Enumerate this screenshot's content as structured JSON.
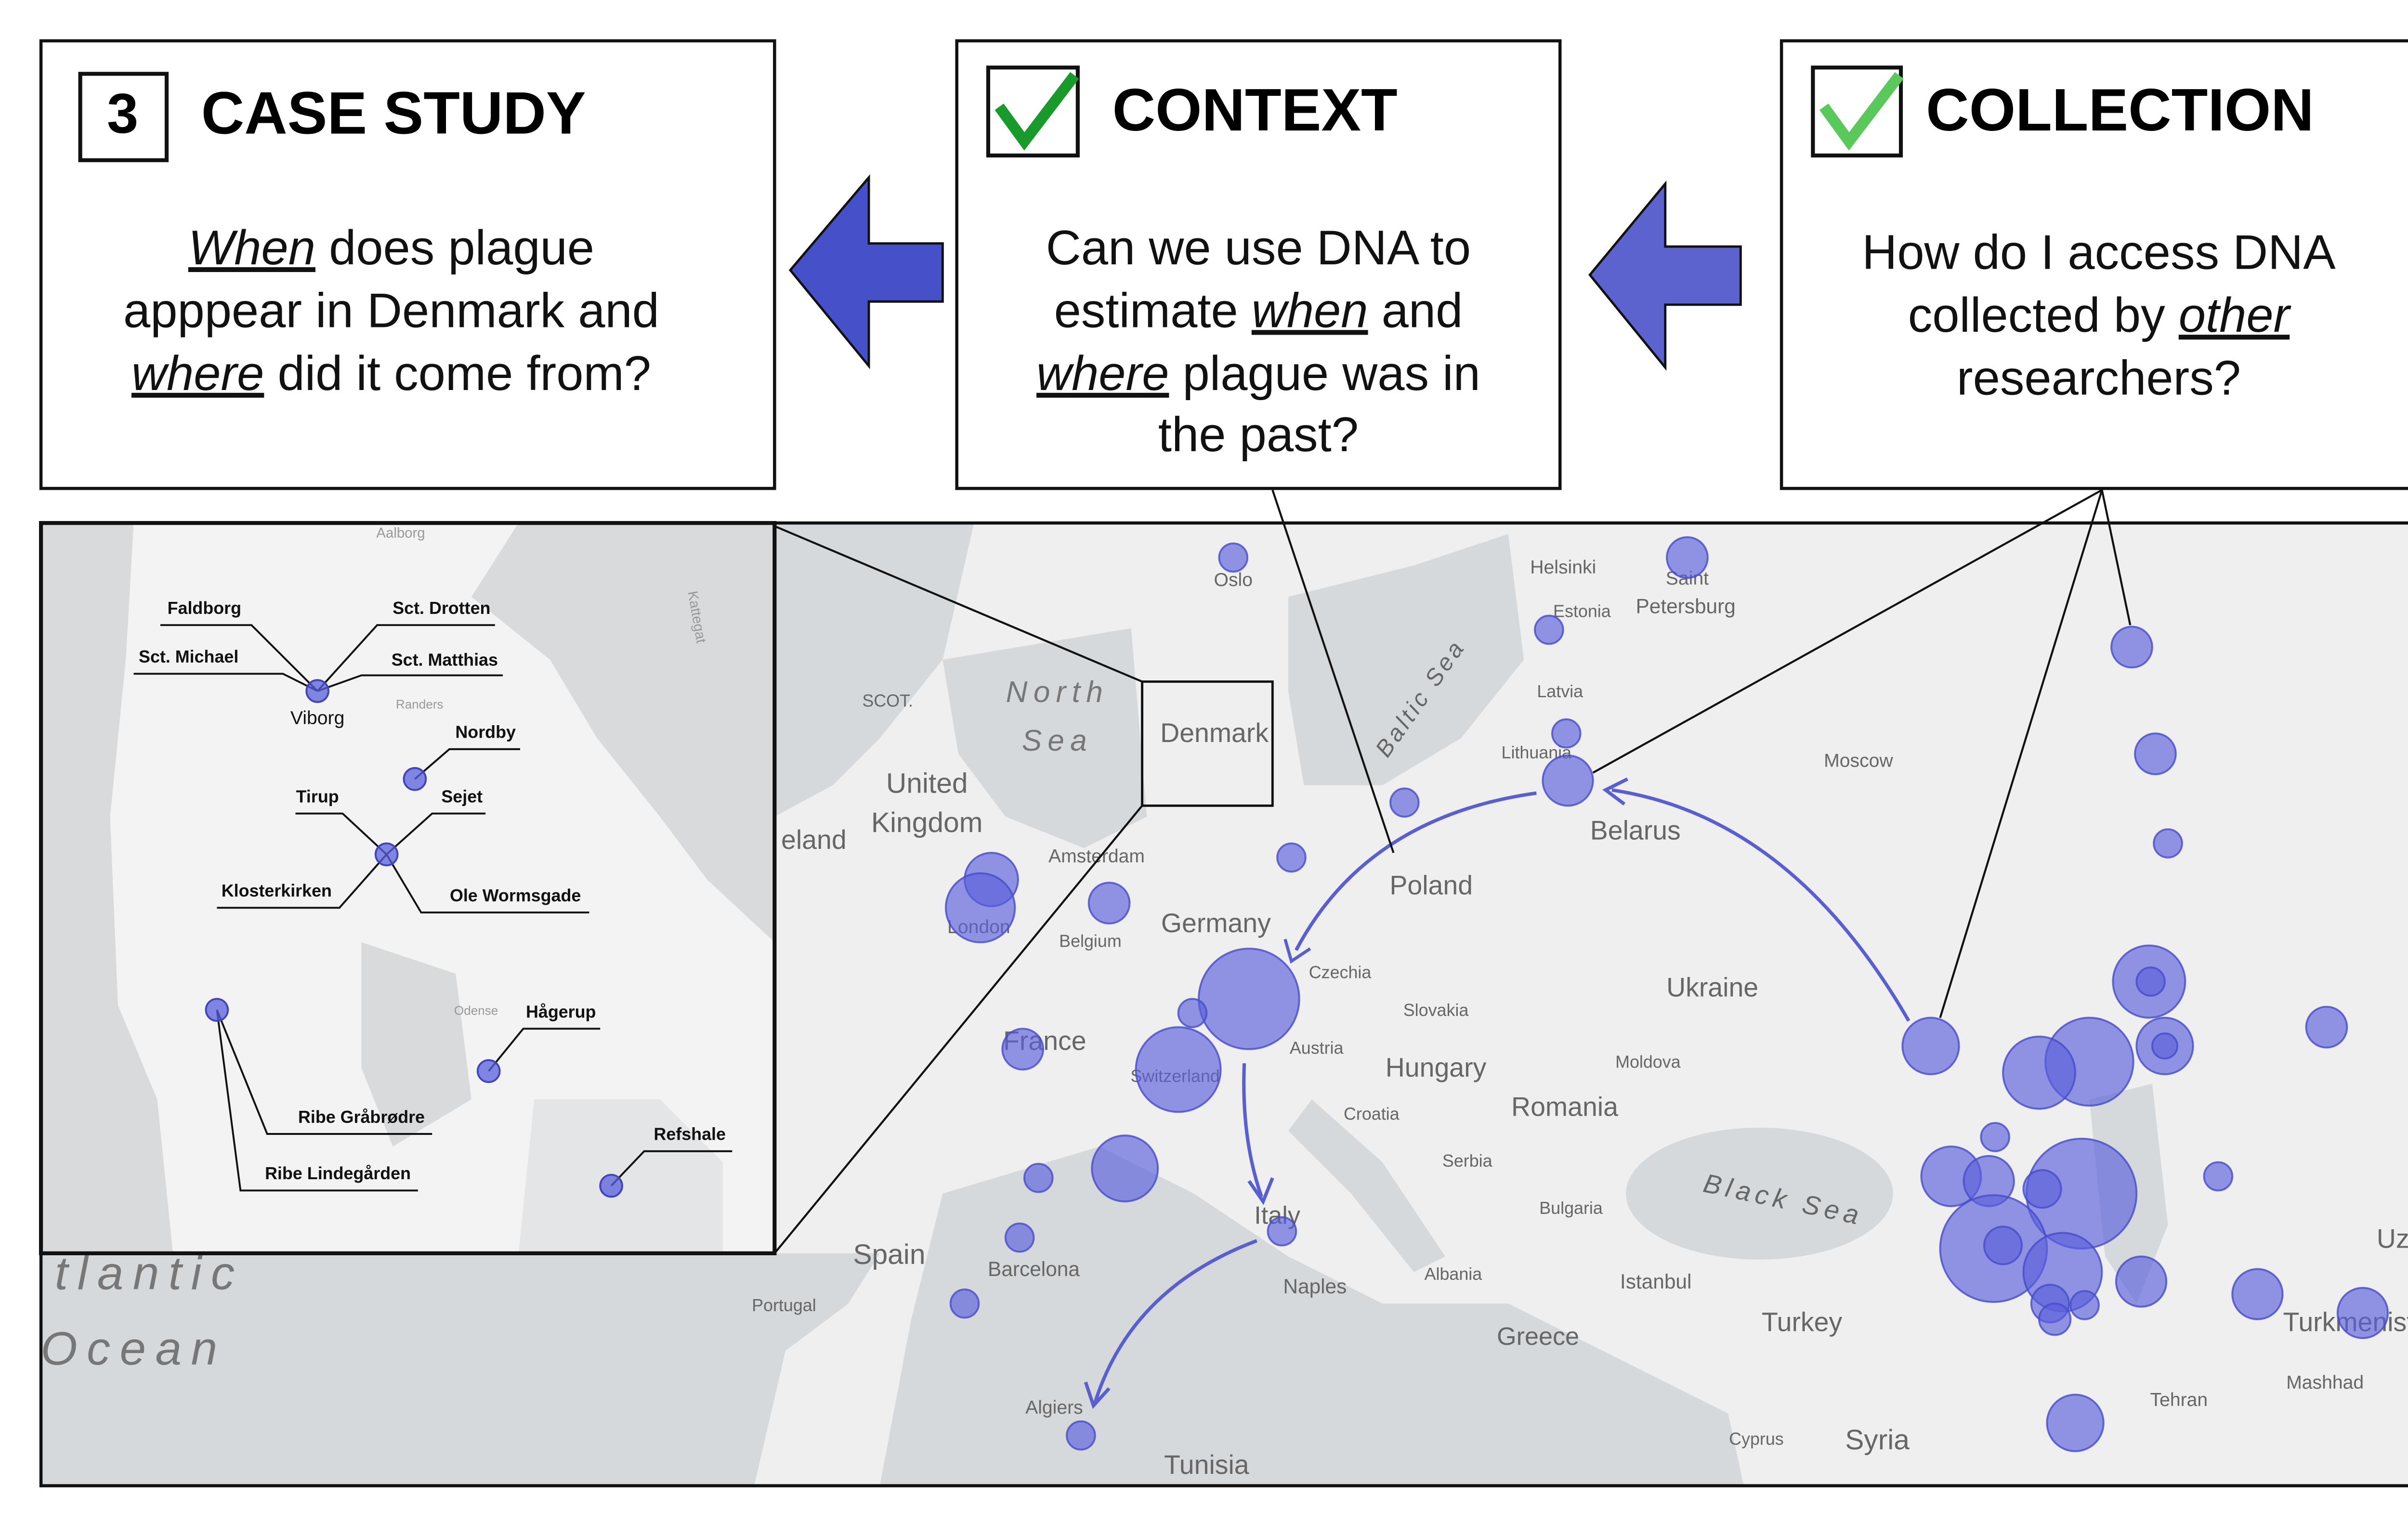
{
  "panels": [
    {
      "marker": "3",
      "title": "CASE STUDY",
      "lines": [
        [
          {
            "text": "When",
            "em": true
          },
          {
            "text": " does plague"
          }
        ],
        [
          {
            "text": "apppear in Denmark and"
          }
        ],
        [
          {
            "text": "where",
            "em": true
          },
          {
            "text": " did it come from?"
          }
        ]
      ]
    },
    {
      "title": "CONTEXT",
      "lines": [
        [
          {
            "text": "Can we use DNA to"
          }
        ],
        [
          {
            "text": "estimate "
          },
          {
            "text": "when",
            "em": true
          },
          {
            "text": " and"
          }
        ],
        [
          {
            "text": "where",
            "em": true
          },
          {
            "text": " plague was in"
          }
        ],
        [
          {
            "text": "the past?"
          }
        ]
      ]
    },
    {
      "title": "COLLECTION",
      "lines": [
        [
          {
            "text": "How do I access DNA"
          }
        ],
        [
          {
            "text": "collected by "
          },
          {
            "text": "other",
            "em": true
          }
        ],
        [
          {
            "text": "researchers?"
          }
        ]
      ]
    }
  ],
  "map": {
    "labels": [
      "Oslo",
      "Helsinki",
      "Saint",
      "Petersburg",
      "Estonia",
      "Latvia",
      "Lithuania",
      "Moscow",
      "Belarus",
      "North",
      "Sea",
      "Baltic Sea",
      "Denmark",
      "SCOT.",
      "United",
      "Kingdom",
      "eland",
      "Amsterdam",
      "London",
      "Belgium",
      "Germany",
      "Poland",
      "Czechia",
      "Ukraine",
      "Slovakia",
      "France",
      "Austria",
      "Moldova",
      "Hungary",
      "Switzerland",
      "Romania",
      "Croatia",
      "Serbia",
      "Black Sea",
      "Bulgaria",
      "Italy",
      "Spain",
      "Barcelona",
      "Albania",
      "Istanbul",
      "Naples",
      "Portugal",
      "Turkey",
      "Greece",
      "Turkmenist",
      "Uzb",
      "Mashhad",
      "Tehran",
      "Algiers",
      "Cyprus",
      "Syria",
      "Tunisia",
      "tlantic",
      "Ocean"
    ]
  },
  "inset": {
    "labels": [
      "Aalborg",
      "Kattegat",
      "Randers",
      "Odense",
      "Viborg"
    ],
    "sites": [
      "Faldborg",
      "Sct. Drotten",
      "Sct. Michael",
      "Sct. Matthias",
      "Nordby",
      "Tirup",
      "Sejet",
      "Klosterkirken",
      "Ole Wormsgade",
      "Hågerup",
      "Ribe Gråbrødre",
      "Ribe Lindegården",
      "Refshale"
    ]
  }
}
